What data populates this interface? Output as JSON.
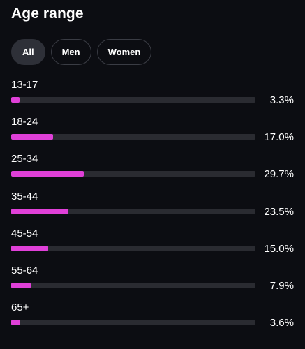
{
  "title": "Age range",
  "filters": {
    "all": "All",
    "men": "Men",
    "women": "Women",
    "selected": "All"
  },
  "colors": {
    "background": "#0c0d12",
    "bar_fill": "#e040d8",
    "bar_track": "#2a2b31"
  },
  "age_ranges": [
    {
      "label": "13-17",
      "value": 3.3,
      "display": "3.3%"
    },
    {
      "label": "18-24",
      "value": 17.0,
      "display": "17.0%"
    },
    {
      "label": "25-34",
      "value": 29.7,
      "display": "29.7%"
    },
    {
      "label": "35-44",
      "value": 23.5,
      "display": "23.5%"
    },
    {
      "label": "45-54",
      "value": 15.0,
      "display": "15.0%"
    },
    {
      "label": "55-64",
      "value": 7.9,
      "display": "7.9%"
    },
    {
      "label": "65+",
      "value": 3.6,
      "display": "3.6%"
    }
  ]
}
